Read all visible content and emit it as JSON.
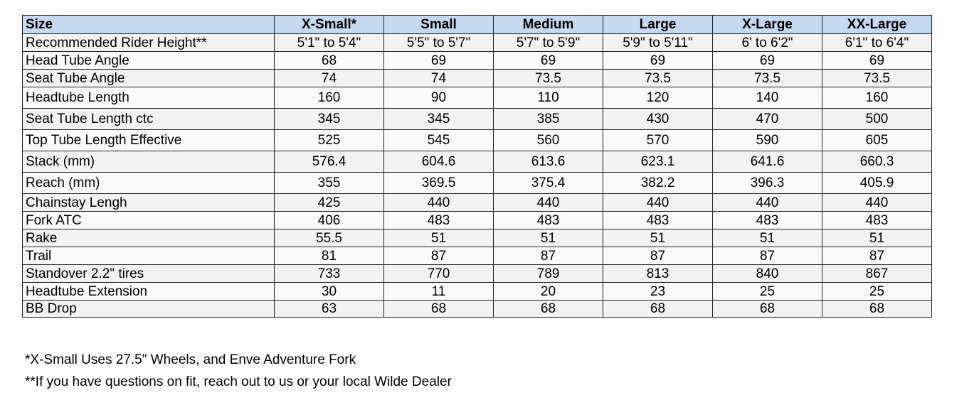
{
  "table": {
    "header": [
      "Size",
      "X-Small*",
      "Small",
      "Medium",
      "Large",
      "X-Large",
      "XX-Large"
    ],
    "rows": [
      [
        "Recommended Rider Height**",
        "5'1\" to 5'4\"",
        "5'5\" to 5'7\"",
        "5'7\" to 5'9\"",
        "5'9\" to 5'11\"",
        "6' to 6'2\"",
        "6'1\" to 6'4\""
      ],
      [
        "Head Tube Angle",
        68,
        69,
        69,
        69,
        69,
        69
      ],
      [
        "Seat Tube Angle",
        74,
        74,
        73.5,
        73.5,
        73.5,
        73.5
      ],
      [
        "Headtube Length",
        160,
        90,
        110,
        120,
        140,
        160
      ],
      [
        "Seat Tube Length ctc",
        345,
        345,
        385,
        430,
        470,
        500
      ],
      [
        "Top Tube Length Effective",
        525,
        545,
        560,
        570,
        590,
        605
      ],
      [
        "Stack (mm)",
        576.4,
        604.6,
        613.6,
        623.1,
        641.6,
        660.3
      ],
      [
        "Reach (mm)",
        355,
        369.5,
        375.4,
        382.2,
        396.3,
        405.9
      ],
      [
        "Chainstay Lengh",
        425,
        440,
        440,
        440,
        440,
        440
      ],
      [
        "Fork ATC",
        406,
        483,
        483,
        483,
        483,
        483
      ],
      [
        "Rake",
        55.5,
        51,
        51,
        51,
        51,
        51
      ],
      [
        "Trail",
        81,
        87,
        87,
        87,
        87,
        87
      ],
      [
        "Standover 2.2\" tires",
        733,
        770,
        789,
        813,
        840,
        867
      ],
      [
        "Headtube Extension",
        30,
        11,
        20,
        23,
        25,
        25
      ],
      [
        "BB Drop",
        63,
        68,
        68,
        68,
        68,
        68
      ]
    ]
  },
  "notes": [
    "*X-Small Uses 27.5\" Wheels, and Enve Adventure Fork",
    "**If you have questions on fit, reach out to us or your local Wilde Dealer"
  ]
}
